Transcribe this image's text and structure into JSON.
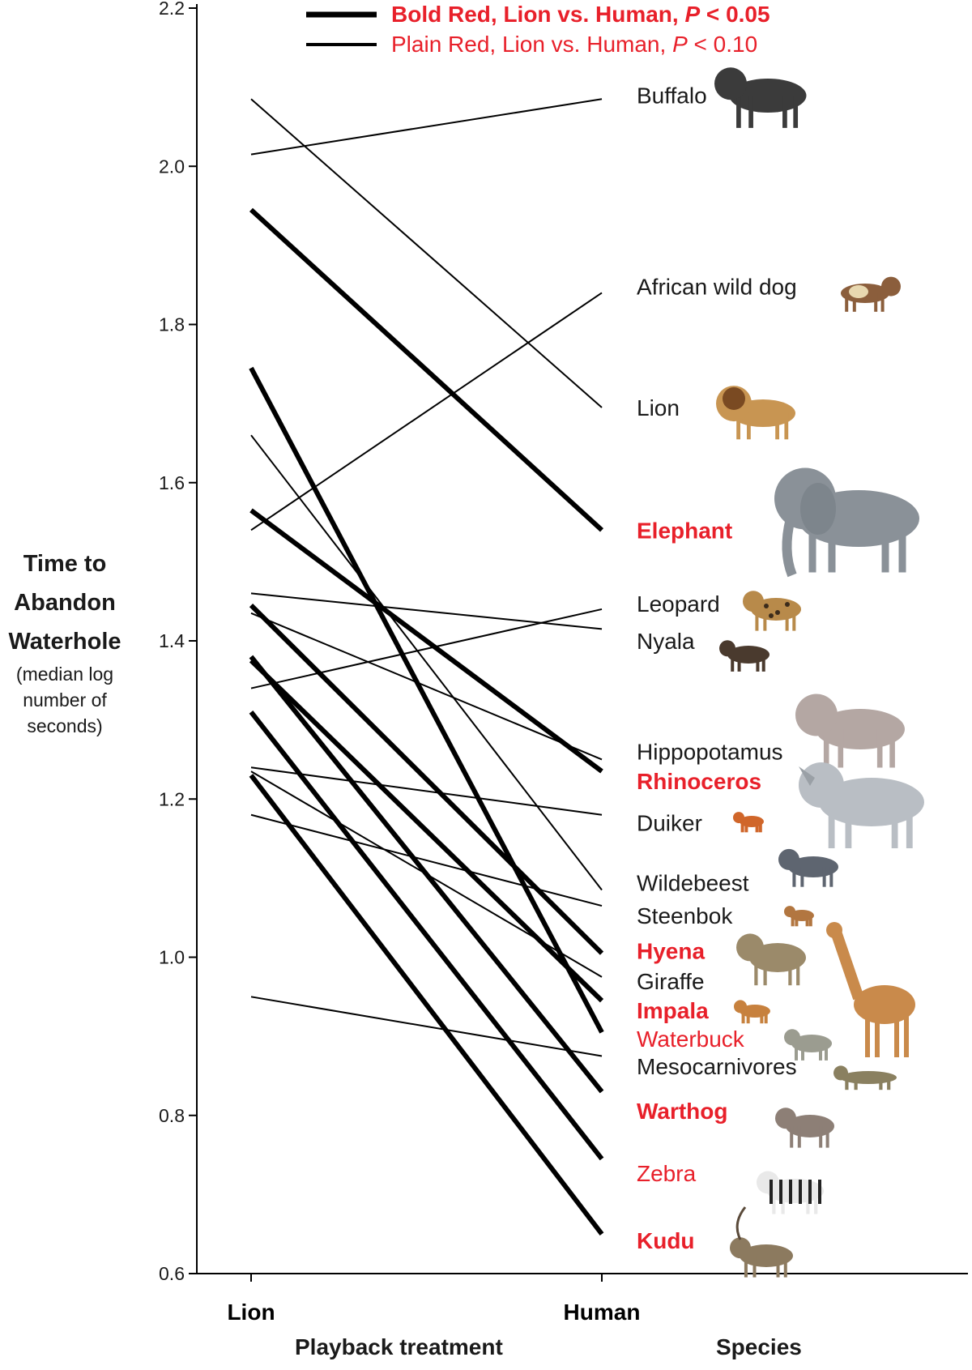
{
  "chart_data": {
    "type": "line",
    "x": [
      "Lion",
      "Human"
    ],
    "xlabel": "Playback treatment",
    "species_label": "Species",
    "ylabel_lines": [
      "Time to",
      "Abandon",
      "Waterhole"
    ],
    "ylabel_sub_lines": [
      "(median log",
      "number of",
      "seconds)"
    ],
    "ylim": [
      0.6,
      2.2
    ],
    "yticks": [
      0.6,
      0.8,
      1.0,
      1.2,
      1.4,
      1.6,
      1.8,
      2.0,
      2.2
    ],
    "grid": false,
    "legend_position": "top",
    "legend": [
      {
        "text": "Bold Red, Lion vs. Human,",
        "p_symbol": "P",
        "p_value": "< 0.05",
        "style": "bold",
        "color": "#e8202a"
      },
      {
        "text": "Plain Red, Lion vs. Human,",
        "p_symbol": "P",
        "p_value": "< 0.10",
        "style": "plain",
        "color": "#e8202a"
      }
    ],
    "series": [
      {
        "name": "Buffalo",
        "values": [
          2.015,
          2.085
        ],
        "significance": "none",
        "label_y": 2.09
      },
      {
        "name": "African wild dog",
        "values": [
          1.54,
          1.84
        ],
        "significance": "none",
        "label_y": 1.848
      },
      {
        "name": "Lion",
        "values": [
          2.085,
          1.695
        ],
        "significance": "none",
        "label_y": 1.695
      },
      {
        "name": "Elephant",
        "values": [
          1.945,
          1.54
        ],
        "significance": "bold",
        "label_y": 1.54
      },
      {
        "name": "Leopard",
        "values": [
          1.46,
          1.415
        ],
        "significance": "none",
        "label_y": 1.447
      },
      {
        "name": "Nyala",
        "values": [
          1.34,
          1.44
        ],
        "significance": "none",
        "label_y": 1.4
      },
      {
        "name": "Hippopotamus",
        "values": [
          1.435,
          1.25
        ],
        "significance": "none",
        "label_y": 1.26
      },
      {
        "name": "Rhinoceros",
        "values": [
          1.565,
          1.235
        ],
        "significance": "bold",
        "label_y": 1.223
      },
      {
        "name": "Duiker",
        "values": [
          1.24,
          1.18
        ],
        "significance": "none",
        "label_y": 1.17
      },
      {
        "name": "Wildebeest",
        "values": [
          1.66,
          1.085
        ],
        "significance": "none",
        "label_y": 1.094
      },
      {
        "name": "Steenbok",
        "values": [
          1.18,
          1.065
        ],
        "significance": "none",
        "label_y": 1.053
      },
      {
        "name": "Hyena",
        "values": [
          1.445,
          1.005
        ],
        "significance": "bold",
        "label_y": 1.008
      },
      {
        "name": "Giraffe",
        "values": [
          1.235,
          0.975
        ],
        "significance": "none",
        "label_y": 0.97
      },
      {
        "name": "Impala",
        "values": [
          1.745,
          0.905
        ],
        "significance": "bold",
        "label_y": 0.933
      },
      {
        "name": "Waterbuck",
        "values": [
          1.375,
          0.945
        ],
        "significance": "plain",
        "label_y": 0.897
      },
      {
        "name": "Mesocarnivores",
        "values": [
          0.95,
          0.875
        ],
        "significance": "none",
        "label_y": 0.862
      },
      {
        "name": "Warthog",
        "values": [
          1.38,
          0.83
        ],
        "significance": "bold",
        "label_y": 0.806
      },
      {
        "name": "Zebra",
        "values": [
          1.31,
          0.745
        ],
        "significance": "plain",
        "label_y": 0.727
      },
      {
        "name": "Kudu",
        "values": [
          1.23,
          0.65
        ],
        "significance": "bold",
        "label_y": 0.642
      }
    ]
  },
  "colors": {
    "highlight": "#e8202a",
    "line": "#000000",
    "text": "#1a1a1a"
  },
  "icons": [
    {
      "for": "Buffalo",
      "icon": "buffalo-icon"
    },
    {
      "for": "African wild dog",
      "icon": "wild-dog-icon"
    },
    {
      "for": "Lion",
      "icon": "lion-icon"
    },
    {
      "for": "Elephant",
      "icon": "elephant-icon"
    },
    {
      "for": "Leopard",
      "icon": "leopard-icon"
    },
    {
      "for": "Nyala",
      "icon": "nyala-icon"
    },
    {
      "for": "Hippopotamus",
      "icon": "hippopotamus-icon"
    },
    {
      "for": "Rhinoceros",
      "icon": "rhinoceros-icon"
    },
    {
      "for": "Duiker",
      "icon": "duiker-icon"
    },
    {
      "for": "Wildebeest",
      "icon": "wildebeest-icon"
    },
    {
      "for": "Steenbok",
      "icon": "steenbok-icon"
    },
    {
      "for": "Hyena",
      "icon": "hyena-icon"
    },
    {
      "for": "Giraffe",
      "icon": "giraffe-icon"
    },
    {
      "for": "Impala",
      "icon": "impala-icon"
    },
    {
      "for": "Waterbuck",
      "icon": "waterbuck-icon"
    },
    {
      "for": "Mesocarnivores",
      "icon": "mesocarnivore-icon"
    },
    {
      "for": "Warthog",
      "icon": "warthog-icon"
    },
    {
      "for": "Zebra",
      "icon": "zebra-icon"
    },
    {
      "for": "Kudu",
      "icon": "kudu-icon"
    }
  ]
}
